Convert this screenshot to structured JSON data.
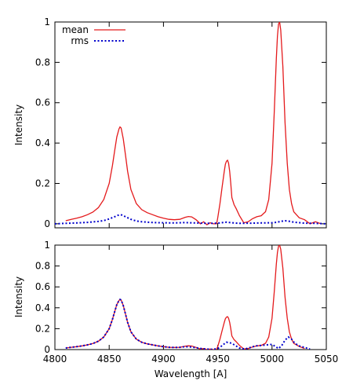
{
  "chart_data": [
    {
      "type": "line",
      "title": "",
      "xlabel": "",
      "ylabel": "Intensity",
      "xlim": [
        4800,
        5050
      ],
      "ylim": [
        -0.02,
        1.0
      ],
      "x_ticks": [],
      "y_ticks": [
        "0",
        "0.2",
        "0.4",
        "0.6",
        "0.8",
        "1"
      ],
      "y_tick_values": [
        0,
        0.2,
        0.4,
        0.6,
        0.8,
        1.0
      ],
      "grid": false,
      "legend_position": "top-left",
      "series": [
        {
          "name": "mean",
          "color": "#e41a1c",
          "dash": "solid",
          "x": [
            4810,
            4815,
            4820,
            4825,
            4830,
            4835,
            4840,
            4845,
            4850,
            4853,
            4855,
            4857,
            4859,
            4860,
            4861,
            4863,
            4865,
            4867,
            4870,
            4875,
            4880,
            4885,
            4890,
            4895,
            4900,
            4905,
            4910,
            4915,
            4920,
            4923,
            4926,
            4930,
            4934,
            4937,
            4940,
            4943,
            4946,
            4949,
            4950,
            4952,
            4954,
            4956,
            4957,
            4958,
            4959,
            4960,
            4961,
            4962,
            4963,
            4965,
            4967,
            4970,
            4974,
            4978,
            4982,
            4986,
            4990,
            4994,
            4997,
            5000,
            5002,
            5004,
            5005,
            5006,
            5007,
            5008,
            5010,
            5012,
            5014,
            5016,
            5018,
            5020,
            5025,
            5030,
            5035,
            5040,
            5045
          ],
          "y": [
            0.015,
            0.022,
            0.028,
            0.035,
            0.045,
            0.058,
            0.08,
            0.12,
            0.2,
            0.29,
            0.36,
            0.43,
            0.47,
            0.48,
            0.475,
            0.42,
            0.34,
            0.26,
            0.17,
            0.1,
            0.07,
            0.055,
            0.045,
            0.035,
            0.028,
            0.022,
            0.02,
            0.022,
            0.032,
            0.036,
            0.034,
            0.02,
            0.0,
            0.01,
            -0.005,
            0.005,
            0.0,
            0.0,
            0.03,
            0.1,
            0.18,
            0.26,
            0.295,
            0.31,
            0.315,
            0.3,
            0.26,
            0.2,
            0.13,
            0.095,
            0.075,
            0.04,
            0.005,
            0.01,
            0.025,
            0.035,
            0.04,
            0.06,
            0.12,
            0.3,
            0.55,
            0.82,
            0.93,
            0.99,
            1.0,
            0.96,
            0.78,
            0.5,
            0.3,
            0.17,
            0.1,
            0.06,
            0.03,
            0.02,
            0.0,
            0.01,
            0.0
          ]
        },
        {
          "name": "rms",
          "color": "#0000cc",
          "dash": "dotted",
          "x": [
            4800,
            4810,
            4820,
            4830,
            4840,
            4845,
            4850,
            4855,
            4858,
            4860,
            4862,
            4865,
            4870,
            4875,
            4880,
            4890,
            4900,
            4910,
            4920,
            4925,
            4930,
            4940,
            4950,
            4955,
            4958,
            4960,
            4963,
            4970,
            4980,
            4990,
            5000,
            5005,
            5008,
            5012,
            5015,
            5020,
            5030,
            5040,
            5050
          ],
          "y": [
            0.0,
            0.002,
            0.004,
            0.007,
            0.012,
            0.016,
            0.024,
            0.035,
            0.042,
            0.045,
            0.043,
            0.035,
            0.022,
            0.014,
            0.01,
            0.006,
            0.005,
            0.004,
            0.006,
            0.005,
            0.004,
            0.002,
            0.003,
            0.006,
            0.008,
            0.007,
            0.005,
            0.002,
            0.003,
            0.004,
            0.005,
            0.008,
            0.012,
            0.015,
            0.013,
            0.008,
            0.003,
            0.002,
            0.0
          ]
        }
      ]
    },
    {
      "type": "line",
      "title": "",
      "xlabel": "Wavelength [A]",
      "ylabel": "Intensity",
      "xlim": [
        4800,
        5050
      ],
      "ylim": [
        0,
        1.0
      ],
      "x_ticks": [
        "4800",
        "4850",
        "4900",
        "4950",
        "5000",
        "5050"
      ],
      "x_tick_values": [
        4800,
        4850,
        4900,
        4950,
        5000,
        5050
      ],
      "y_ticks": [
        "0",
        "0.2",
        "0.4",
        "0.6",
        "0.8",
        "1"
      ],
      "y_tick_values": [
        0,
        0.2,
        0.4,
        0.6,
        0.8,
        1.0
      ],
      "grid": false,
      "series": [
        {
          "color": "#e41a1c",
          "dash": "solid",
          "x": [
            4810,
            4815,
            4820,
            4825,
            4830,
            4835,
            4840,
            4845,
            4850,
            4853,
            4855,
            4857,
            4859,
            4860,
            4861,
            4863,
            4865,
            4867,
            4870,
            4875,
            4880,
            4885,
            4890,
            4895,
            4900,
            4905,
            4910,
            4915,
            4920,
            4923,
            4926,
            4930,
            4934,
            4937,
            4940,
            4943,
            4946,
            4949,
            4950,
            4952,
            4954,
            4956,
            4957,
            4958,
            4959,
            4960,
            4961,
            4962,
            4963,
            4965,
            4967,
            4970,
            4974,
            4978,
            4982,
            4986,
            4990,
            4994,
            4997,
            5000,
            5002,
            5004,
            5005,
            5006,
            5007,
            5008,
            5010,
            5012,
            5014,
            5016,
            5018,
            5020,
            5025,
            5030
          ],
          "y": [
            0.015,
            0.022,
            0.028,
            0.035,
            0.045,
            0.058,
            0.08,
            0.12,
            0.2,
            0.29,
            0.36,
            0.43,
            0.47,
            0.48,
            0.475,
            0.42,
            0.34,
            0.26,
            0.17,
            0.1,
            0.07,
            0.055,
            0.045,
            0.035,
            0.028,
            0.022,
            0.02,
            0.022,
            0.032,
            0.036,
            0.034,
            0.02,
            0.005,
            0.01,
            0.0,
            0.005,
            0.0,
            0.002,
            0.03,
            0.1,
            0.18,
            0.26,
            0.295,
            0.31,
            0.315,
            0.3,
            0.26,
            0.2,
            0.13,
            0.095,
            0.075,
            0.04,
            0.005,
            0.01,
            0.025,
            0.035,
            0.04,
            0.06,
            0.12,
            0.3,
            0.55,
            0.82,
            0.93,
            0.99,
            1.0,
            0.96,
            0.78,
            0.5,
            0.3,
            0.17,
            0.1,
            0.06,
            0.03,
            0.01
          ]
        },
        {
          "color": "#0000cc",
          "dash": "dotted",
          "x": [
            4810,
            4815,
            4820,
            4825,
            4830,
            4835,
            4840,
            4845,
            4850,
            4853,
            4855,
            4857,
            4859,
            4860,
            4861,
            4863,
            4865,
            4867,
            4870,
            4875,
            4880,
            4885,
            4890,
            4895,
            4900,
            4905,
            4910,
            4915,
            4920,
            4925,
            4930,
            4935,
            4940,
            4945,
            4950,
            4953,
            4956,
            4958,
            4960,
            4963,
            4966,
            4970,
            4975,
            4980,
            4985,
            4990,
            4995,
            5000,
            5003,
            5006,
            5009,
            5012,
            5015,
            5018,
            5021,
            5025,
            5030,
            5035
          ],
          "y": [
            0.015,
            0.022,
            0.028,
            0.035,
            0.045,
            0.058,
            0.08,
            0.12,
            0.2,
            0.29,
            0.36,
            0.43,
            0.47,
            0.48,
            0.475,
            0.42,
            0.34,
            0.26,
            0.17,
            0.1,
            0.07,
            0.055,
            0.045,
            0.035,
            0.028,
            0.022,
            0.02,
            0.022,
            0.028,
            0.025,
            0.018,
            0.01,
            0.005,
            0.002,
            0.01,
            0.03,
            0.055,
            0.07,
            0.068,
            0.06,
            0.04,
            0.015,
            0.005,
            0.02,
            0.035,
            0.04,
            0.045,
            0.05,
            0.03,
            0.01,
            0.04,
            0.09,
            0.12,
            0.1,
            0.06,
            0.035,
            0.02,
            0.005
          ]
        }
      ]
    }
  ]
}
